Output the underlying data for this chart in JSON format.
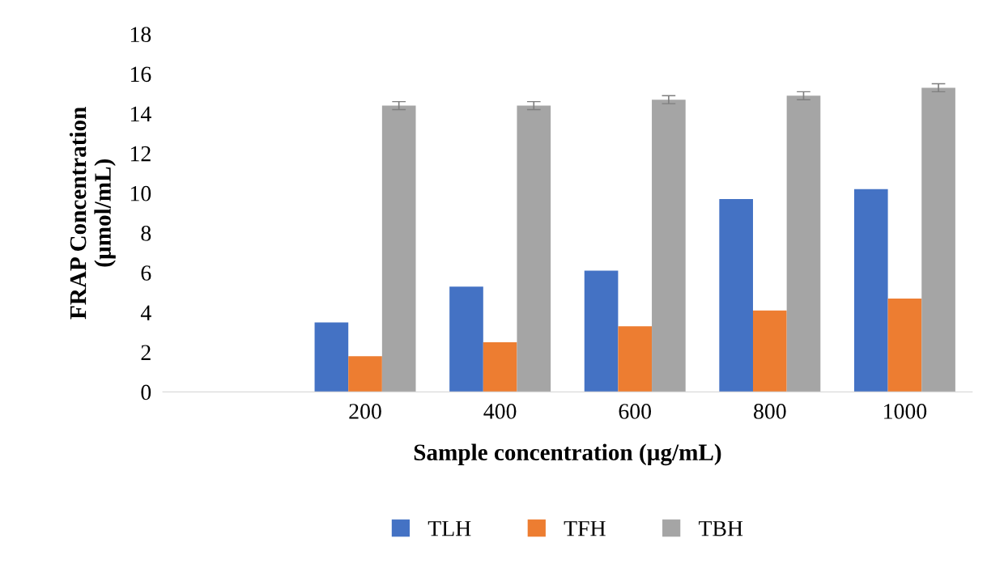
{
  "chart_data": {
    "type": "bar",
    "xlabel": "Sample concentration (µg/mL)",
    "ylabel": "FRAP Concentration\n(µmol/mL)",
    "categories": [
      null,
      "200",
      "400",
      "600",
      "800",
      "1000"
    ],
    "series": [
      {
        "name": "TLH",
        "color": "#4472c4",
        "values": [
          null,
          3.5,
          5.3,
          6.1,
          9.7,
          10.2
        ]
      },
      {
        "name": "TFH",
        "color": "#ed7d31",
        "values": [
          null,
          1.8,
          2.5,
          3.3,
          4.1,
          4.7
        ]
      },
      {
        "name": "TBH",
        "color": "#a5a5a5",
        "values": [
          null,
          14.4,
          14.4,
          14.7,
          14.9,
          15.3
        ],
        "errors": [
          null,
          0.2,
          0.2,
          0.2,
          0.2,
          0.2
        ]
      }
    ],
    "ylim": [
      0,
      18
    ],
    "yticks": [
      0,
      2,
      4,
      6,
      8,
      10,
      12,
      14,
      16,
      18
    ],
    "grid": false,
    "legend": "bottom"
  }
}
